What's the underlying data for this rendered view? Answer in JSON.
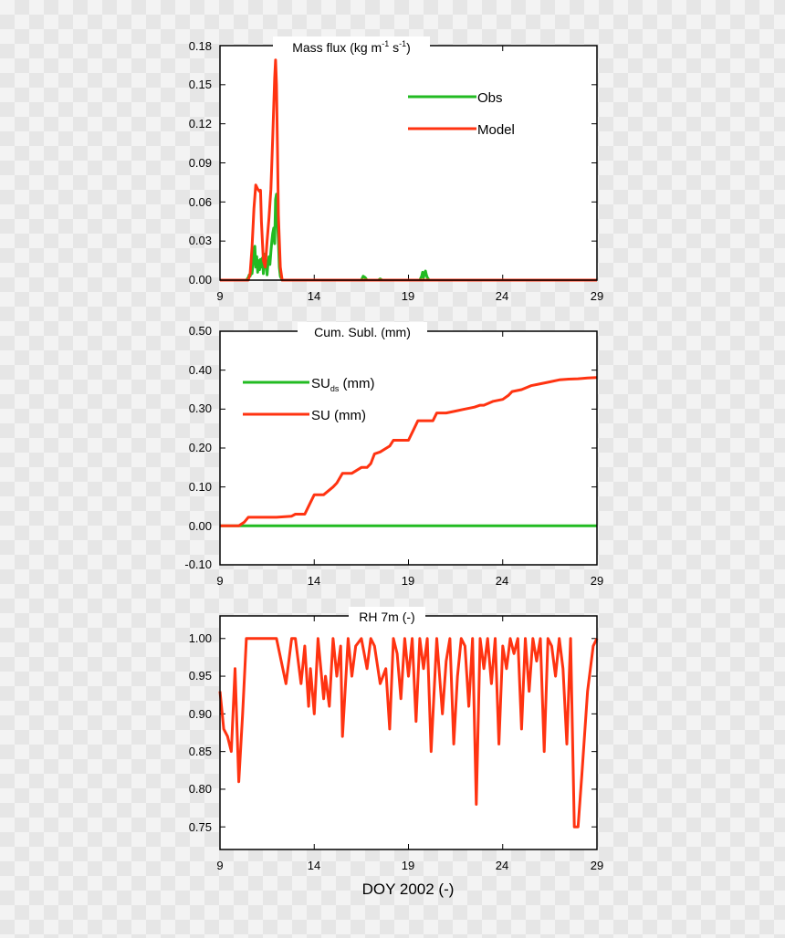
{
  "colors": {
    "obs": "#22bb22",
    "model": "#ff3311",
    "axis": "#000000"
  },
  "figure": {
    "xlabel": "DOY 2002 (-)"
  },
  "chart_data": [
    {
      "type": "line",
      "title_main": "Mass flux (kg m",
      "title_sup1": "-1",
      "title_mid": " s",
      "title_sup2": "-1",
      "title_end": ")",
      "xlim": [
        9,
        29
      ],
      "ylim": [
        0,
        0.18
      ],
      "xticks": [
        "9",
        "14",
        "19",
        "24",
        "29"
      ],
      "yticks": [
        "0.00",
        "0.03",
        "0.06",
        "0.09",
        "0.12",
        "0.15",
        "0.18"
      ],
      "legend_position": "top-right",
      "grid": false,
      "series": [
        {
          "name": "Obs",
          "color_key": "obs",
          "x": [
            9,
            10.4,
            10.5,
            10.55,
            10.6,
            10.65,
            10.7,
            10.75,
            10.8,
            10.85,
            10.9,
            10.95,
            11.0,
            11.05,
            11.1,
            11.15,
            11.2,
            11.25,
            11.3,
            11.35,
            11.4,
            11.45,
            11.5,
            11.55,
            11.6,
            11.65,
            11.7,
            11.75,
            11.8,
            11.85,
            11.9,
            11.95,
            12.0,
            12.05,
            12.1,
            12.15,
            12.2,
            12.3,
            13.0,
            14.0,
            15.0,
            16.0,
            16.5,
            16.6,
            16.7,
            16.8,
            17.4,
            17.5,
            17.6,
            18.0,
            19.0,
            19.6,
            19.7,
            19.75,
            19.8,
            19.85,
            19.9,
            19.95,
            20.0,
            20.1,
            21.0,
            22.0,
            24.0,
            29
          ],
          "y": [
            0,
            0,
            0.002,
            0.004,
            0.003,
            0.006,
            0.005,
            0.012,
            0.022,
            0.026,
            0.01,
            0.018,
            0.006,
            0.015,
            0.008,
            0.016,
            0.01,
            0.017,
            0.005,
            0.02,
            0.012,
            0.01,
            0.004,
            0.014,
            0.018,
            0.012,
            0.022,
            0.03,
            0.036,
            0.04,
            0.028,
            0.062,
            0.066,
            0.045,
            0.03,
            0.01,
            0.003,
            0,
            0,
            0,
            0,
            0,
            0,
            0.003,
            0.002,
            0,
            0,
            0.001,
            0,
            0,
            0,
            0,
            0.003,
            0.006,
            0.002,
            0.005,
            0.007,
            0.004,
            0.002,
            0,
            0,
            0,
            0,
            0
          ]
        },
        {
          "name": "Model",
          "color_key": "model",
          "x": [
            9,
            10.5,
            10.6,
            10.7,
            10.8,
            10.9,
            11.0,
            11.1,
            11.15,
            11.2,
            11.3,
            11.4,
            11.5,
            11.6,
            11.7,
            11.8,
            11.9,
            11.95,
            12.0,
            12.05,
            12.1,
            12.2,
            12.3,
            13.0,
            29
          ],
          "y": [
            0,
            0,
            0.005,
            0.025,
            0.055,
            0.073,
            0.07,
            0.068,
            0.069,
            0.045,
            0.015,
            0.01,
            0.03,
            0.048,
            0.07,
            0.11,
            0.155,
            0.169,
            0.15,
            0.1,
            0.05,
            0.01,
            0,
            0,
            0
          ]
        }
      ]
    },
    {
      "type": "line",
      "title": "Cum. Subl. (mm)",
      "xlim": [
        9,
        29
      ],
      "ylim": [
        -0.1,
        0.5
      ],
      "xticks": [
        "9",
        "14",
        "19",
        "24",
        "29"
      ],
      "yticks": [
        "-0.10",
        "0.00",
        "0.10",
        "0.20",
        "0.30",
        "0.40",
        "0.50"
      ],
      "legend_position": "top-left",
      "grid": false,
      "series": [
        {
          "name_main": "SU",
          "name_sub": "ds",
          "name_end": " (mm)",
          "color_key": "obs",
          "x": [
            9,
            29
          ],
          "y": [
            0,
            0
          ]
        },
        {
          "name": "SU (mm)",
          "color_key": "model",
          "x": [
            9,
            10.0,
            10.3,
            10.5,
            11.0,
            12.0,
            12.8,
            13.0,
            13.5,
            13.8,
            14.0,
            14.2,
            14.5,
            15.0,
            15.2,
            15.5,
            15.8,
            16.0,
            16.5,
            16.8,
            17.0,
            17.2,
            17.5,
            18.0,
            18.2,
            18.5,
            19.0,
            19.3,
            19.5,
            20.0,
            20.3,
            20.5,
            21.0,
            21.5,
            22.0,
            22.5,
            22.8,
            23.0,
            23.5,
            24.0,
            24.3,
            24.5,
            25.0,
            25.5,
            26.0,
            26.5,
            27.0,
            27.5,
            28.0,
            28.5,
            29.0
          ],
          "y": [
            0,
            0,
            0.01,
            0.022,
            0.022,
            0.022,
            0.025,
            0.03,
            0.03,
            0.06,
            0.08,
            0.08,
            0.08,
            0.1,
            0.11,
            0.135,
            0.135,
            0.135,
            0.15,
            0.15,
            0.16,
            0.185,
            0.19,
            0.205,
            0.22,
            0.22,
            0.22,
            0.25,
            0.27,
            0.27,
            0.27,
            0.29,
            0.29,
            0.295,
            0.3,
            0.305,
            0.31,
            0.31,
            0.32,
            0.325,
            0.335,
            0.345,
            0.35,
            0.36,
            0.365,
            0.37,
            0.375,
            0.377,
            0.378,
            0.38,
            0.381
          ]
        }
      ]
    },
    {
      "type": "line",
      "title": "RH 7m (-)",
      "xlim": [
        9,
        29
      ],
      "ylim": [
        0.72,
        1.03
      ],
      "xticks": [
        "9",
        "14",
        "19",
        "24",
        "29"
      ],
      "yticks": [
        "0.75",
        "0.80",
        "0.85",
        "0.90",
        "0.95",
        "1.00"
      ],
      "grid": false,
      "series": [
        {
          "color_key": "model",
          "x": [
            9,
            9.2,
            9.4,
            9.6,
            9.8,
            10.0,
            10.2,
            10.4,
            10.6,
            10.8,
            11.0,
            12.0,
            12.5,
            12.8,
            13.0,
            13.3,
            13.5,
            13.7,
            13.8,
            14.0,
            14.2,
            14.5,
            14.6,
            14.8,
            15.0,
            15.2,
            15.4,
            15.5,
            15.8,
            16.0,
            16.2,
            16.5,
            16.8,
            17.0,
            17.2,
            17.5,
            17.8,
            18.0,
            18.2,
            18.4,
            18.6,
            18.8,
            19.0,
            19.2,
            19.4,
            19.6,
            19.8,
            20.0,
            20.2,
            20.5,
            20.8,
            21.0,
            21.2,
            21.4,
            21.6,
            21.8,
            22.0,
            22.2,
            22.4,
            22.6,
            22.8,
            23.0,
            23.2,
            23.4,
            23.6,
            23.8,
            24.0,
            24.2,
            24.4,
            24.6,
            24.8,
            25.0,
            25.2,
            25.4,
            25.6,
            25.8,
            26.0,
            26.2,
            26.4,
            26.6,
            26.8,
            27.0,
            27.2,
            27.4,
            27.6,
            27.8,
            28.0,
            28.2,
            28.5,
            28.8,
            29.0
          ],
          "y": [
            0.93,
            0.88,
            0.87,
            0.85,
            0.96,
            0.81,
            0.9,
            1.0,
            1.0,
            1.0,
            1.0,
            1.0,
            0.94,
            1.0,
            1.0,
            0.94,
            0.99,
            0.91,
            0.96,
            0.9,
            1.0,
            0.92,
            0.95,
            0.91,
            1.0,
            0.95,
            0.99,
            0.87,
            1.0,
            0.95,
            0.99,
            1.0,
            0.96,
            1.0,
            0.99,
            0.94,
            0.96,
            0.88,
            1.0,
            0.98,
            0.92,
            1.0,
            0.95,
            1.0,
            0.89,
            1.0,
            0.96,
            1.0,
            0.85,
            1.0,
            0.9,
            0.97,
            1.0,
            0.86,
            0.95,
            1.0,
            0.99,
            0.91,
            1.0,
            0.78,
            1.0,
            0.96,
            1.0,
            0.94,
            1.0,
            0.86,
            0.99,
            0.96,
            1.0,
            0.98,
            1.0,
            0.88,
            1.0,
            0.93,
            1.0,
            0.97,
            1.0,
            0.85,
            1.0,
            0.99,
            0.95,
            1.0,
            0.96,
            0.86,
            1.0,
            0.75,
            0.75,
            0.82,
            0.93,
            0.99,
            1.0
          ]
        }
      ]
    }
  ]
}
